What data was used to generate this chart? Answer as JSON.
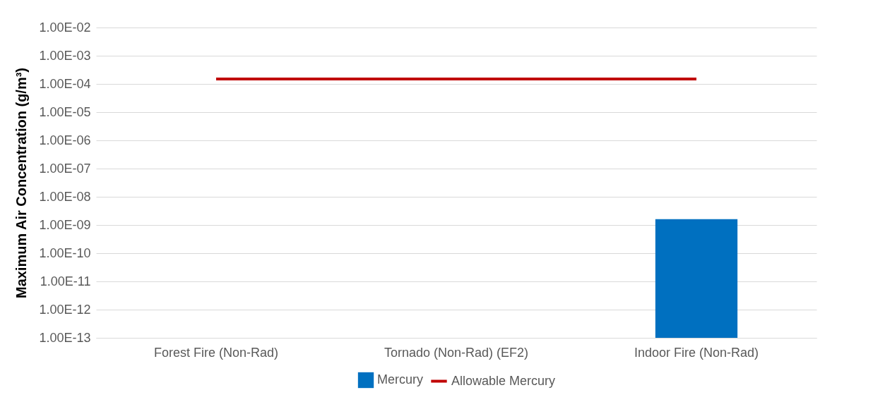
{
  "chart_data": {
    "type": "bar",
    "ylabel": "Maximum Air Concentration (g/m³)",
    "categories": [
      "Forest Fire (Non-Rad)",
      "Tornado (Non-Rad) (EF2)",
      "Indoor Fire (Non-Rad)"
    ],
    "series": [
      {
        "name": "Mercury",
        "color": "#0070c0",
        "values": [
          null,
          null,
          1.6e-09
        ]
      },
      {
        "name": "Allowable Mercury",
        "type": "line",
        "color": "#c00000",
        "values": [
          0.00015,
          0.00015,
          0.00015
        ]
      }
    ],
    "log": true,
    "ylim": [
      1e-13,
      0.01
    ],
    "yticks": [
      {
        "value": 1e-13,
        "label": "1.00E-13"
      },
      {
        "value": 1e-12,
        "label": "1.00E-12"
      },
      {
        "value": 1e-11,
        "label": "1.00E-11"
      },
      {
        "value": 1e-10,
        "label": "1.00E-10"
      },
      {
        "value": 1e-09,
        "label": "1.00E-09"
      },
      {
        "value": 1e-08,
        "label": "1.00E-08"
      },
      {
        "value": 1e-07,
        "label": "1.00E-07"
      },
      {
        "value": 1e-06,
        "label": "1.00E-06"
      },
      {
        "value": 1e-05,
        "label": "1.00E-05"
      },
      {
        "value": 0.0001,
        "label": "1.00E-04"
      },
      {
        "value": 0.001,
        "label": "1.00E-03"
      },
      {
        "value": 0.01,
        "label": "1.00E-02"
      }
    ],
    "grid": "y",
    "legend": "bottom"
  }
}
